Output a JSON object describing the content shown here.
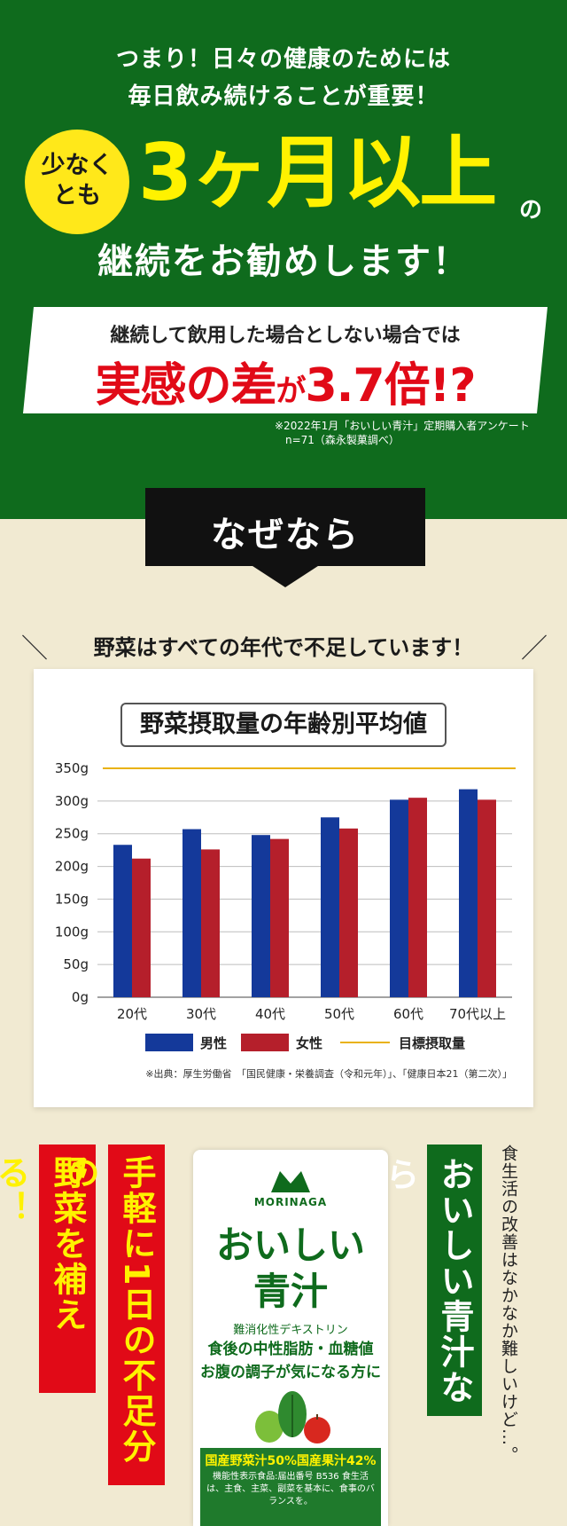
{
  "hero": {
    "lead_line1": "つまり！日々の健康のためには",
    "lead_line2": "毎日飲み続けることが重要！",
    "badge_line1": "少なく",
    "badge_line2": "とも",
    "big_text": "3ヶ月以上",
    "no_char": "の",
    "recommend": "継続をお勧めします！",
    "banner_sub": "継続して飲用した場合としない場合では",
    "banner_main_a": "実感の差",
    "banner_main_ga": "が",
    "banner_main_b": "3.7倍!?",
    "note_line1": "※2022年1月「おいしい青汁」定期購入者アンケート",
    "note_line2": "n=71（森永製菓調べ）"
  },
  "naze": {
    "label": "なぜなら"
  },
  "veg_heading": "野菜はすべての年代で不足しています！",
  "slashes": {
    "left": "＼",
    "right": "／"
  },
  "chart_data": {
    "type": "bar",
    "title": "野菜摂取量の年齢別平均値",
    "categories": [
      "20代",
      "30代",
      "40代",
      "50代",
      "60代",
      "70代以上"
    ],
    "series": [
      {
        "name": "男性",
        "color": "#14399a",
        "values": [
          233,
          257,
          248,
          275,
          302,
          318
        ]
      },
      {
        "name": "女性",
        "color": "#b51f2b",
        "values": [
          212,
          226,
          242,
          258,
          305,
          302
        ]
      }
    ],
    "target": {
      "name": "目標摂取量",
      "value": 350,
      "color": "#e9b211"
    },
    "y_ticks": [
      "0g",
      "50g",
      "100g",
      "150g",
      "200g",
      "250g",
      "300g",
      "350g"
    ],
    "ylim": [
      0,
      350
    ],
    "xlabel": "",
    "ylabel": "",
    "grid": true,
    "legend": "bottom",
    "source": "※出典：厚生労働省　「国民健康・栄養調査（令和元年）」、「健康日本21（第二次）」"
  },
  "bottom": {
    "red1": "野菜を補える！",
    "red2": "手軽に1日の不足分の",
    "green": "おいしい青汁なら",
    "side_note": "食生活の改善はなかなか難しいけど…。"
  },
  "pack": {
    "brand": "MORINAGA",
    "name1": "おいしい",
    "name2": "青汁",
    "line1": "難消化性デキストリン",
    "line2": "食後の中性脂肪・血糖値",
    "line3": "お腹の調子が気になる方に",
    "band1": "国産野菜汁50%国産果汁42%",
    "band2": "機能性表示食品:届出番号 B536 食生活は、主食、主菜、副菜を基本に、食事のバランスを。"
  }
}
